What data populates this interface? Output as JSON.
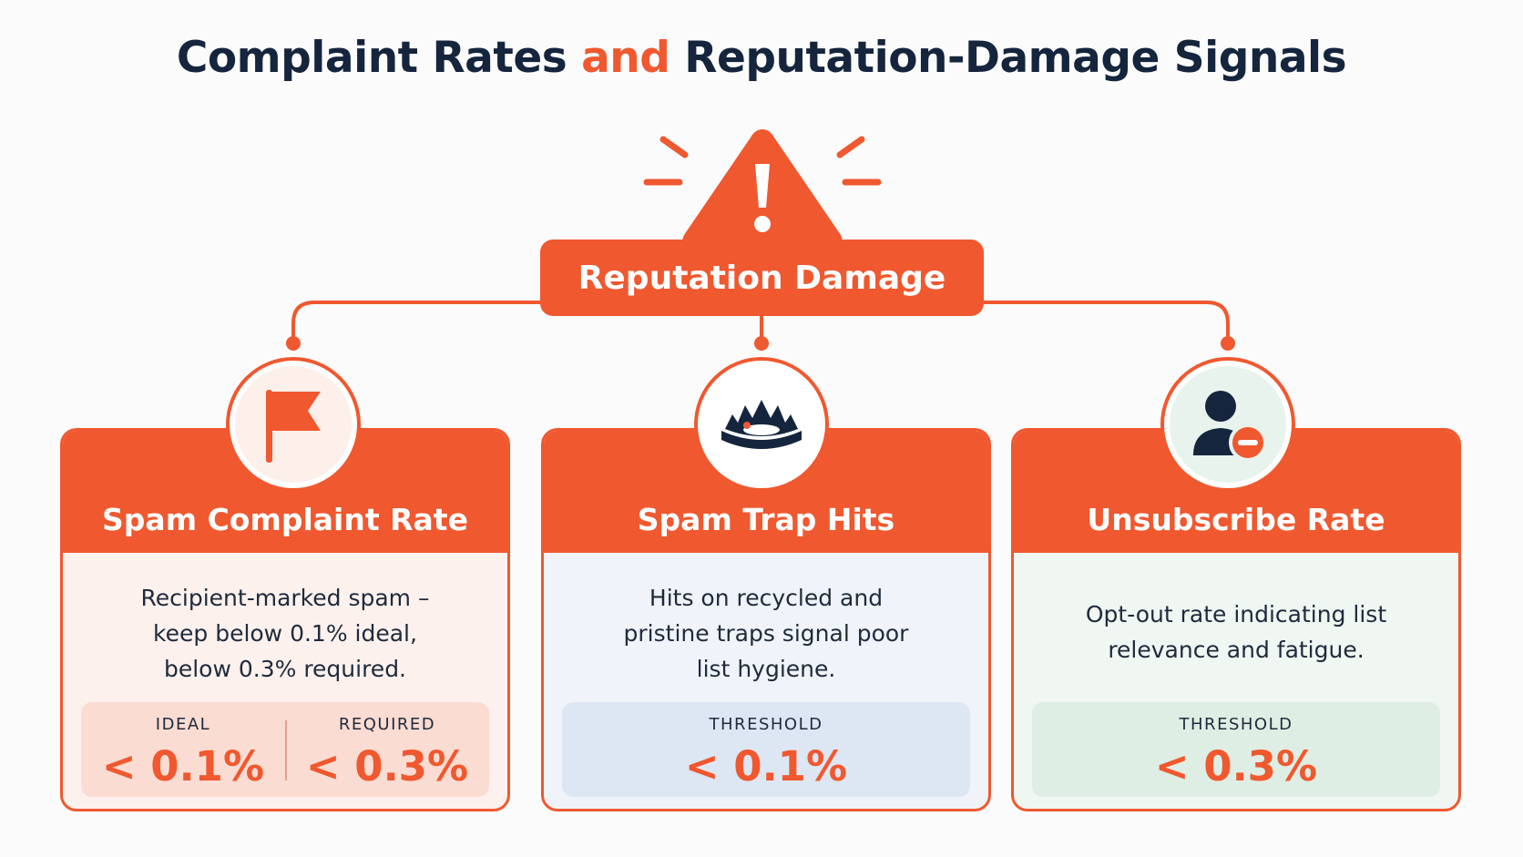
{
  "title": {
    "part1": "Complaint Rates ",
    "accent": "and",
    "part2": " Reputation-Damage Signals"
  },
  "root": {
    "label": "Reputation Damage",
    "icon": "warning-triangle-icon"
  },
  "colors": {
    "accent": "#f0582f",
    "navy": "#15253d"
  },
  "cards": [
    {
      "title": "Spam Complaint Rate",
      "icon": "flag-icon",
      "description": "Recipient-marked spam – keep below 0.1% ideal, below 0.3% required.",
      "metrics": [
        {
          "label": "IDEAL",
          "value": "< 0.1%"
        },
        {
          "label": "REQUIRED",
          "value": "< 0.3%"
        }
      ]
    },
    {
      "title": "Spam Trap Hits",
      "icon": "bear-trap-icon",
      "description": "Hits on recycled and pristine traps signal poor list hygiene.",
      "metrics": [
        {
          "label": "THRESHOLD",
          "value": "< 0.1%"
        }
      ]
    },
    {
      "title": "Unsubscribe Rate",
      "icon": "user-remove-icon",
      "description": "Opt-out rate indicating list relevance and fatigue.",
      "metrics": [
        {
          "label": "THRESHOLD",
          "value": "< 0.3%"
        }
      ]
    }
  ]
}
